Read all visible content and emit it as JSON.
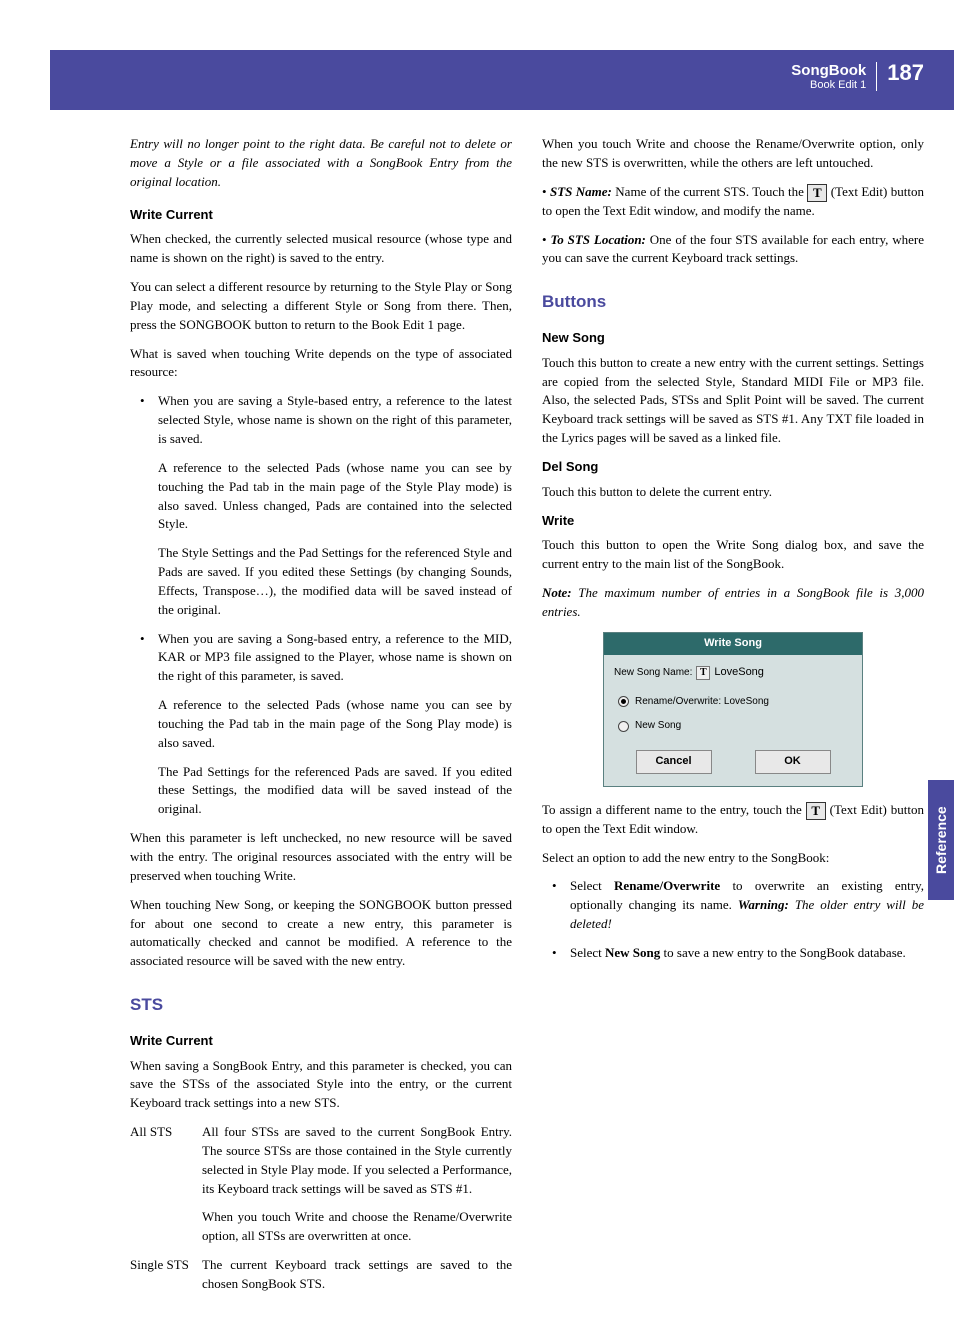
{
  "header": {
    "title": "SongBook",
    "subtitle": "Book Edit 1",
    "page_number": "187"
  },
  "side_tab": "Reference",
  "left": {
    "intro": "Entry will no longer point to the right data. Be careful not to delete or move a Style or a file associated with a SongBook Entry from the original location.",
    "write_current": {
      "heading": "Write Current",
      "p1": "When checked, the currently selected musical resource (whose type and name is shown on the right) is saved to the entry.",
      "p2": "You can select a different resource by returning to the Style Play or Song Play mode, and selecting a different Style or Song from there. Then, press the SONGBOOK button to return to the Book Edit 1 page.",
      "p3": "What is saved when touching Write depends on the type of associated resource:",
      "li1a": "When you are saving a Style-based entry, a reference to the latest selected Style, whose name is shown on the right of this parameter, is saved.",
      "li1b": "A reference to the selected Pads (whose name you can see by touching the Pad tab in the main page of the Style Play mode) is also saved. Unless changed, Pads are contained into the selected Style.",
      "li1c": "The Style Settings and the Pad Settings for the referenced Style and Pads are saved. If you edited these Settings (by changing Sounds, Effects, Transpose…), the modified data will be saved instead of the original.",
      "li2a": "When you are saving a Song-based entry, a reference to the MID, KAR or MP3 file assigned to the Player, whose name is shown on the right of this parameter, is saved.",
      "li2b": "A reference to the selected Pads (whose name you can see by touching the Pad tab in the main page of the Song Play mode) is also saved.",
      "li2c": "The Pad Settings for the referenced Pads are saved. If you edited these Settings, the modified data will be saved instead of the original.",
      "p4": "When this parameter is left unchecked, no new resource will be saved with the entry. The original resources associated with the entry will be preserved when touching Write.",
      "p5": "When touching New Song, or keeping the SONGBOOK button pressed for about one second to create a new entry, this parameter is automatically checked and cannot be modified. A reference to the associated resource will be saved with the new entry."
    },
    "sts": {
      "heading": "STS",
      "sub_heading": "Write Current",
      "p1": "When saving a SongBook Entry, and this parameter is checked, you can save the STSs of the associated Style into the entry, or the current Keyboard track settings into a new STS.",
      "all_sts_term": "All STS",
      "all_sts_p1": "All four STSs are saved to the current SongBook Entry. The source STSs are those contained in the Style currently selected in Style Play mode. If you selected a Performance, its Keyboard track settings will be saved as STS #1.",
      "all_sts_p2": "When you touch Write and choose the Rename/Overwrite option, all STSs are overwritten at once.",
      "single_sts_term": "Single STS",
      "single_sts_p1": "The current Keyboard track settings are saved to the chosen SongBook STS."
    }
  },
  "right": {
    "p1": "When you touch Write and choose the Rename/Overwrite option, only the new STS is overwritten, while the others are left untouched.",
    "sts_name_label": "STS Name:",
    "sts_name_text1": " Name of the current STS. Touch the ",
    "sts_name_text2": " (Text Edit) button to open the Text Edit window, and modify the name.",
    "to_sts_label": "To STS Location:",
    "to_sts_text": " One of the four STS available for each entry, where you can save the current Keyboard track settings.",
    "buttons": {
      "heading": "Buttons",
      "new_song_h": "New Song",
      "new_song_p": "Touch this button to create a new entry with the current settings. Settings are copied from the selected Style, Standard MIDI File or MP3 file. Also, the selected Pads, STSs and Split Point will be saved. The current Keyboard track settings will be saved as STS #1. Any TXT file loaded in the Lyrics pages will be saved as a linked file.",
      "del_song_h": "Del Song",
      "del_song_p": "Touch this button to delete the current entry.",
      "write_h": "Write",
      "write_p": "Touch this button to open the Write Song dialog box, and save the current entry to the main list of the SongBook.",
      "note_label": "Note:",
      "note_body": " The maximum number of entries in a SongBook file is 3,000 entries."
    },
    "dialog": {
      "title": "Write Song",
      "field_label": "New Song Name:",
      "field_icon": "T",
      "field_value": "LoveSong",
      "radio1": "Rename/Overwrite: LoveSong",
      "radio2": "New Song",
      "btn_cancel": "Cancel",
      "btn_ok": "OK"
    },
    "after_dialog_1a": "To assign a different name to the entry, touch the ",
    "after_dialog_1b": " (Text Edit) button to open the Text Edit window.",
    "after_dialog_2": "Select an option to add the new entry to the SongBook:",
    "li1_a": "Select ",
    "li1_b": "Rename/Overwrite",
    "li1_c": " to overwrite an existing entry, optionally changing its name. ",
    "li1_warn_label": "Warning:",
    "li1_warn_body": " The older entry will be deleted!",
    "li2_a": "Select ",
    "li2_b": "New Song",
    "li2_c": " to save a new entry to the SongBook database."
  },
  "text_edit_glyph": "T"
}
